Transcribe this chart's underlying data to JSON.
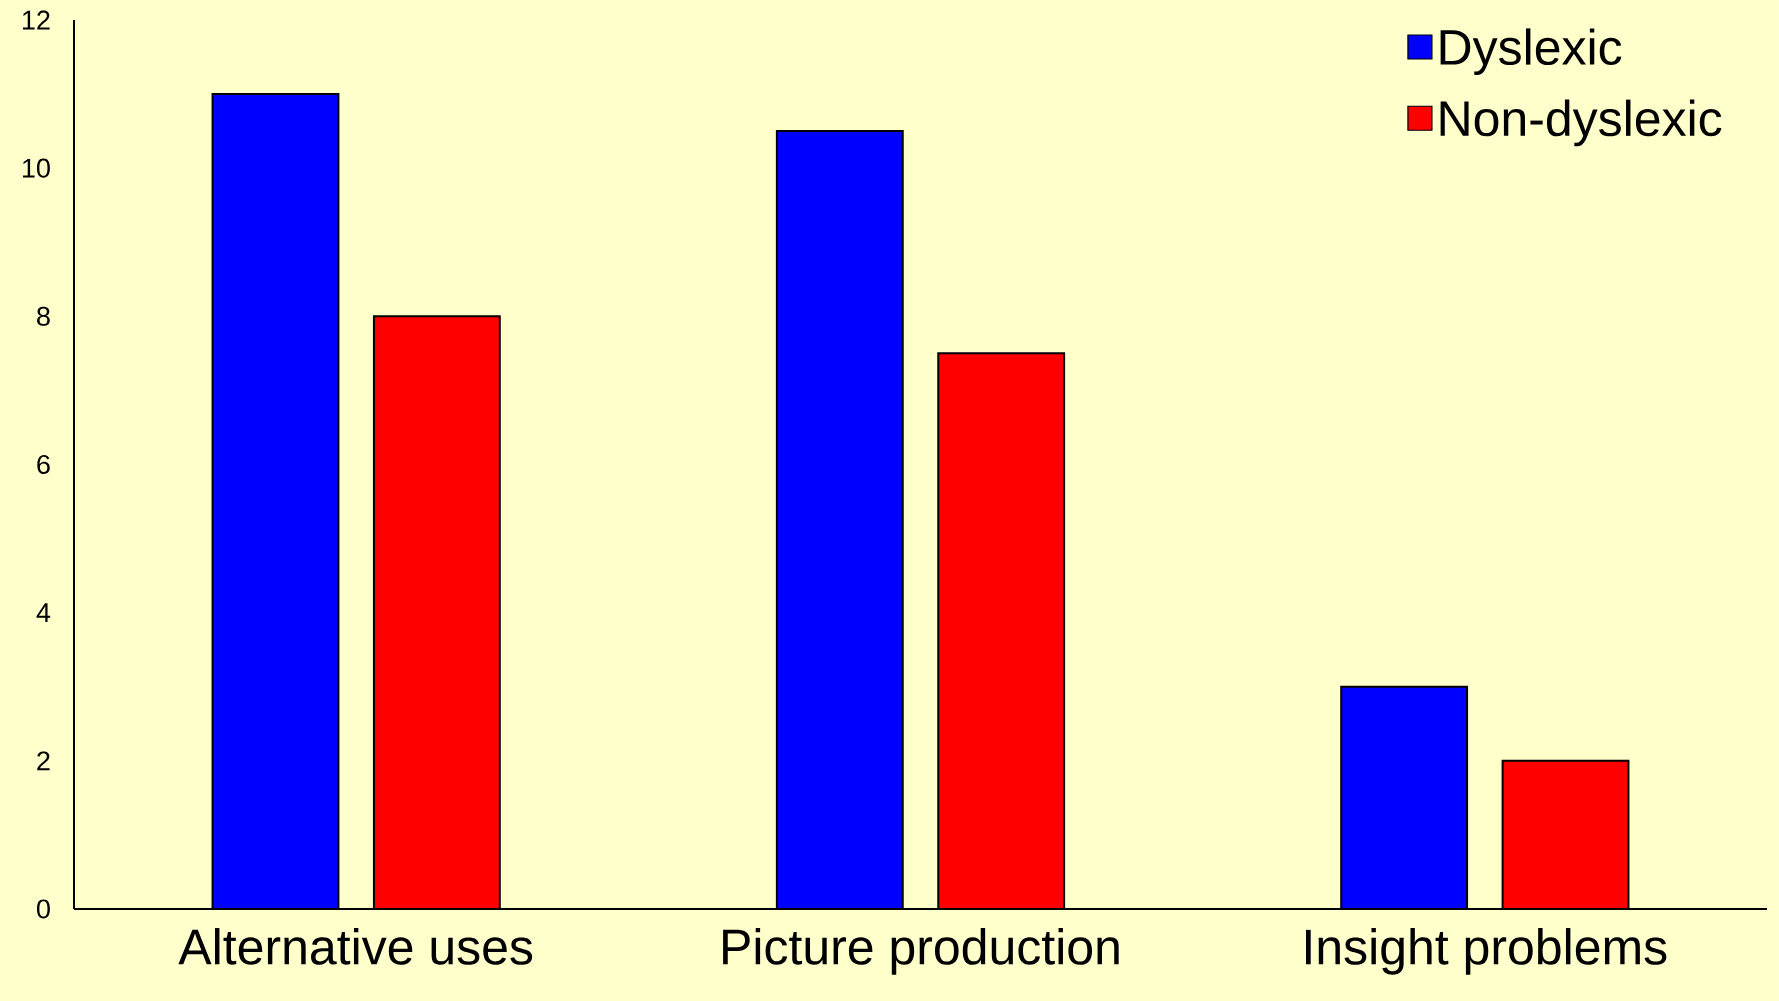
{
  "chart_data": {
    "type": "bar",
    "categories": [
      "Alternative uses",
      "Picture production",
      "Insight problems"
    ],
    "series": [
      {
        "name": "Dyslexic",
        "color": "#0000ff",
        "values": [
          11,
          10.5,
          3
        ]
      },
      {
        "name": "Non-dyslexic",
        "color": "#ff0000",
        "values": [
          8,
          7.5,
          2
        ]
      }
    ],
    "ylim": [
      0,
      12
    ],
    "yticks": [
      0,
      2,
      4,
      6,
      8,
      10,
      12
    ],
    "legend": "top right",
    "grid": false
  }
}
